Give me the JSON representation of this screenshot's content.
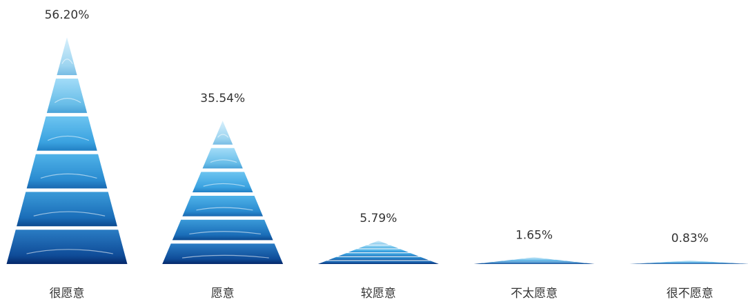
{
  "chart_data": {
    "type": "pyramid-bar",
    "categories": [
      "很愿意",
      "愿意",
      "较愿意",
      "不太愿意",
      "很不愿意"
    ],
    "values": [
      56.2,
      35.54,
      5.79,
      1.65,
      0.83
    ],
    "value_labels": [
      "56.20%",
      "35.54%",
      "5.79%",
      "1.65%",
      "0.83%"
    ]
  }
}
